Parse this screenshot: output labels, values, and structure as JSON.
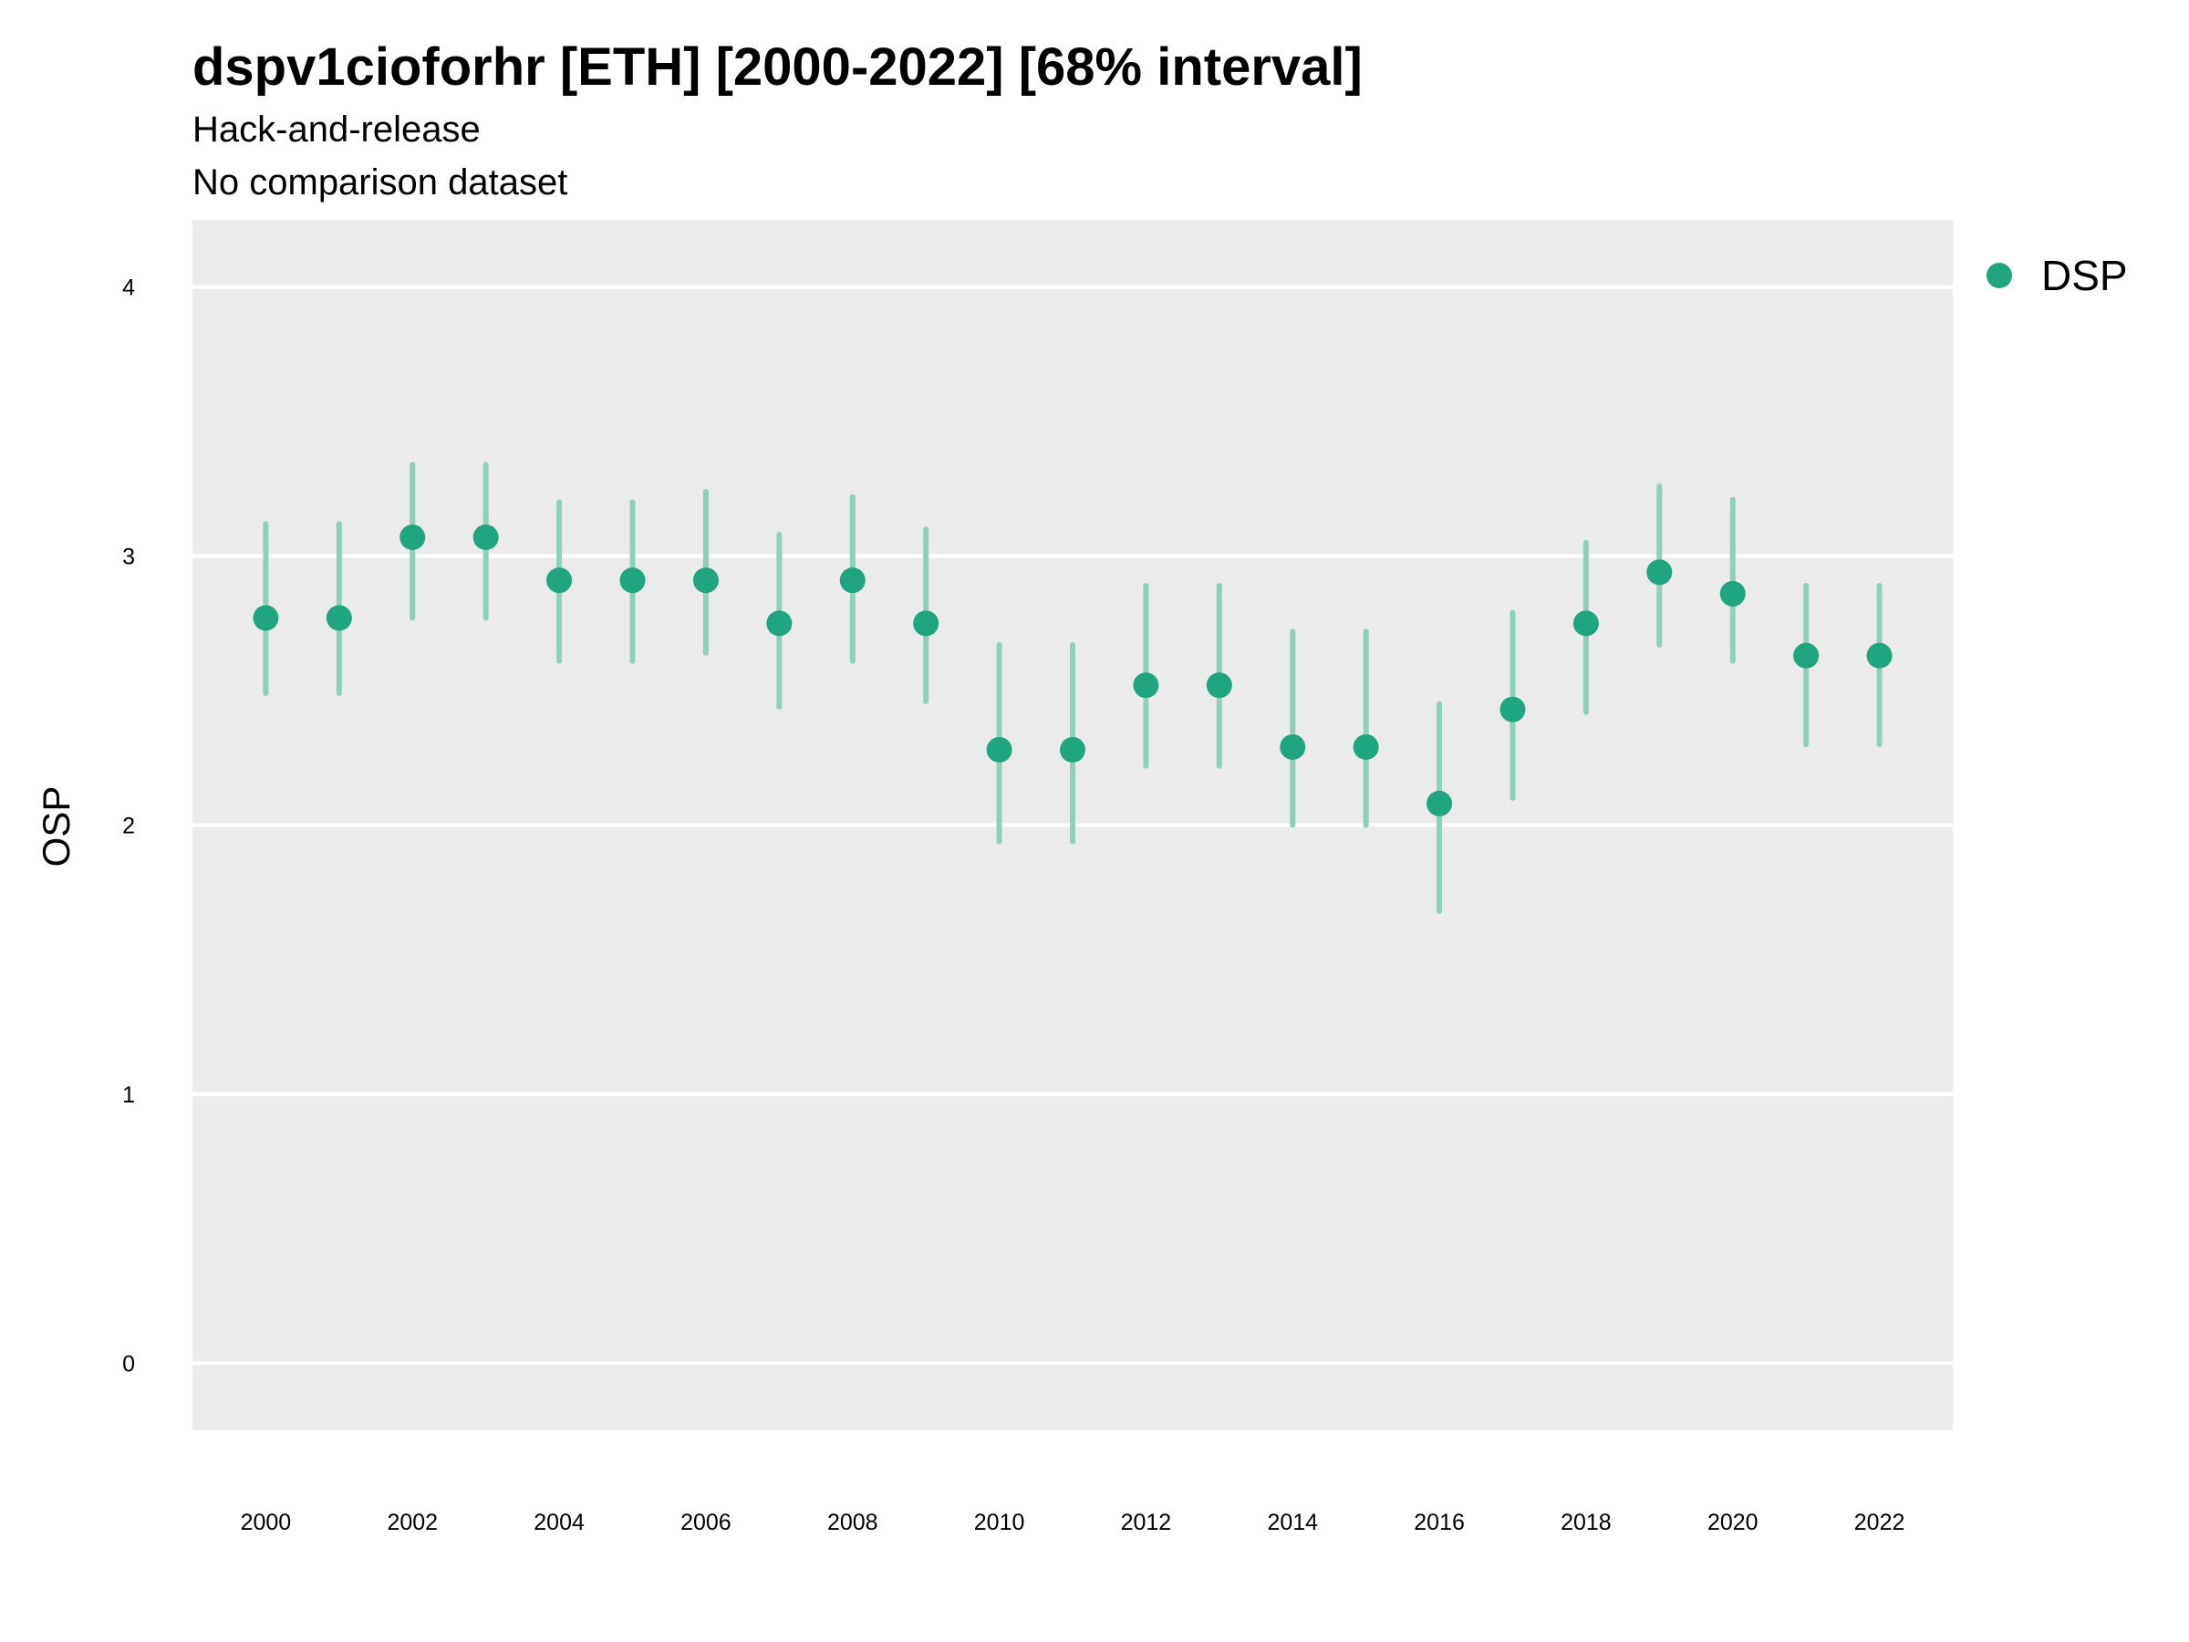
{
  "chart_data": {
    "type": "scatter",
    "title": "dspv1cioforhr [ETH] [2000-2022] [68% interval]",
    "subtitle": "Hack-and-release",
    "subtitle2": "No comparison dataset",
    "xlabel": "",
    "ylabel": "OSP",
    "xlim": [
      1999,
      2023
    ],
    "ylim": [
      -0.25,
      4.25
    ],
    "x_ticks": [
      "2000",
      "2002",
      "2004",
      "2006",
      "2008",
      "2010",
      "2012",
      "2014",
      "2016",
      "2018",
      "2020",
      "2022"
    ],
    "y_ticks": [
      "0",
      "1",
      "2",
      "3",
      "4"
    ],
    "grid": true,
    "legend_position": "right",
    "legend": [
      "DSP"
    ],
    "colors": {
      "point": "#1fa57f",
      "interval": "#8fd0bb",
      "panel": "#ebebeb",
      "grid": "#ffffff"
    },
    "series": [
      {
        "name": "DSP",
        "x": [
          2000,
          2001,
          2002,
          2003,
          2004,
          2005,
          2006,
          2007,
          2008,
          2009,
          2010,
          2011,
          2012,
          2013,
          2014,
          2015,
          2016,
          2017,
          2018,
          2019,
          2020,
          2021,
          2022
        ],
        "y": [
          2.77,
          2.77,
          3.07,
          3.07,
          2.91,
          2.91,
          2.91,
          2.75,
          2.91,
          2.75,
          2.28,
          2.28,
          2.52,
          2.52,
          2.29,
          2.29,
          2.08,
          2.43,
          2.75,
          2.94,
          2.86,
          2.63,
          2.63
        ],
        "lower": [
          2.49,
          2.49,
          2.77,
          2.77,
          2.61,
          2.61,
          2.64,
          2.44,
          2.61,
          2.46,
          1.94,
          1.94,
          2.22,
          2.22,
          2.0,
          2.0,
          1.68,
          2.1,
          2.42,
          2.67,
          2.61,
          2.3,
          2.3
        ],
        "upper": [
          3.12,
          3.12,
          3.34,
          3.34,
          3.2,
          3.2,
          3.24,
          3.08,
          3.22,
          3.1,
          2.67,
          2.67,
          2.89,
          2.89,
          2.72,
          2.72,
          2.45,
          2.79,
          3.05,
          3.26,
          3.21,
          2.89,
          2.89
        ]
      }
    ]
  }
}
